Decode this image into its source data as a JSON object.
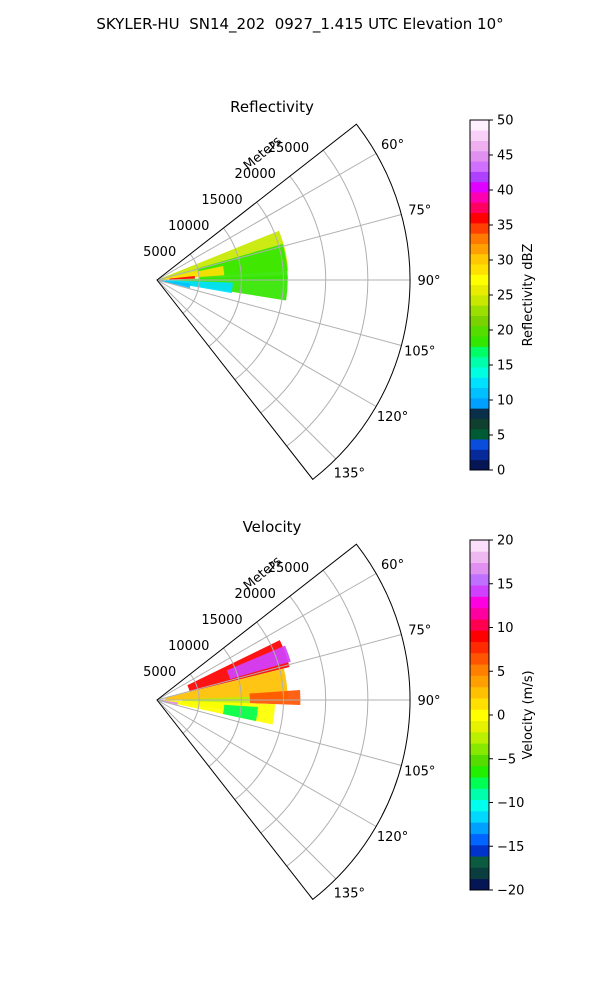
{
  "title": "SKYLER-HU  SN14_202  0927_1.415 UTC Elevation 10°",
  "chart_data": [
    {
      "type": "heatmap",
      "title": "Reflectivity",
      "range_label": "Meters",
      "range_ticks": [
        5000,
        10000,
        15000,
        20000,
        25000
      ],
      "range_max": 30000,
      "azimuth_ticks": [
        "60°",
        "75°",
        "90°",
        "105°",
        "120°",
        "135°"
      ],
      "azimuth_values": [
        60,
        75,
        90,
        105,
        120,
        135
      ],
      "azimuth_range": [
        52,
        142
      ],
      "grid": true,
      "colorbar": {
        "label": "Reflectivity dBZ",
        "range": [
          0,
          50
        ],
        "ticks": [
          "0",
          "5",
          "10",
          "15",
          "20",
          "25",
          "30",
          "35",
          "40",
          "45",
          "50"
        ],
        "colors": [
          "#061553",
          "#072a9b",
          "#0a4ddd",
          "#005a33",
          "#0f3f2e",
          "#0a2f4a",
          "#00a0ff",
          "#00c0ff",
          "#00e0ff",
          "#00ffe0",
          "#00ffaa",
          "#00ff66",
          "#33e600",
          "#55dd00",
          "#7ad300",
          "#9adf00",
          "#c8e800",
          "#e8ec00",
          "#ffff00",
          "#ffe000",
          "#ffc800",
          "#ffa000",
          "#ff7800",
          "#ff4000",
          "#ff0000",
          "#ff0060",
          "#ff00b0",
          "#e000ff",
          "#b040ff",
          "#d070ff",
          "#e090f0",
          "#f0b0f0",
          "#f8d0f8",
          "#fff0ff"
        ]
      },
      "echoes": [
        {
          "az": [
            68,
            86
          ],
          "r": [
            0,
            15600
          ],
          "value": 24
        },
        {
          "az": [
            74,
            90
          ],
          "r": [
            5000,
            15500
          ],
          "value": 18
        },
        {
          "az": [
            88,
            99
          ],
          "r": [
            2000,
            15500
          ],
          "value": 19
        },
        {
          "az": [
            92,
            100
          ],
          "r": [
            1000,
            9000
          ],
          "value": 13
        },
        {
          "az": [
            78,
            86
          ],
          "r": [
            1000,
            8000
          ],
          "value": 29
        },
        {
          "az": [
            84,
            88
          ],
          "r": [
            1500,
            4500
          ],
          "value": 36
        },
        {
          "az": [
            96,
            104
          ],
          "r": [
            200,
            4000
          ],
          "value": 11
        }
      ]
    },
    {
      "type": "heatmap",
      "title": "Velocity",
      "range_label": "Meters",
      "range_ticks": [
        5000,
        10000,
        15000,
        20000,
        25000
      ],
      "range_max": 30000,
      "azimuth_ticks": [
        "60°",
        "75°",
        "90°",
        "105°",
        "120°",
        "135°"
      ],
      "azimuth_values": [
        60,
        75,
        90,
        105,
        120,
        135
      ],
      "azimuth_range": [
        52,
        142
      ],
      "grid": true,
      "colorbar": {
        "label": "Velocity (m/s)",
        "range": [
          -20,
          20
        ],
        "ticks": [
          "−20",
          "−15",
          "−10",
          "−5",
          "0",
          "5",
          "10",
          "15",
          "20"
        ],
        "colors": [
          "#061553",
          "#0a3d3d",
          "#0c5a40",
          "#0033cc",
          "#0066ff",
          "#00a0ff",
          "#00d8ff",
          "#00ffee",
          "#00ffaa",
          "#00ff55",
          "#22ee00",
          "#55dd00",
          "#88e800",
          "#bbf000",
          "#e6f200",
          "#ffff00",
          "#ffe000",
          "#ffc000",
          "#ffa000",
          "#ff8000",
          "#ff5500",
          "#ff2a00",
          "#ff0000",
          "#ff0050",
          "#ff00a0",
          "#ff00e0",
          "#d040ff",
          "#c070ff",
          "#e090f0",
          "#f0b8f0",
          "#fae0fa"
        ]
      },
      "echoes": [
        {
          "az": [
            64,
            76
          ],
          "r": [
            4000,
            16200
          ],
          "value": 9
        },
        {
          "az": [
            67,
            74
          ],
          "r": [
            9000,
            16500
          ],
          "value": 14
        },
        {
          "az": [
            76,
            90
          ],
          "r": [
            1000,
            15500
          ],
          "value": 2
        },
        {
          "az": [
            86,
            92
          ],
          "r": [
            11000,
            17000
          ],
          "value": 6
        },
        {
          "az": [
            88,
            98
          ],
          "r": [
            3000,
            11000
          ],
          "value": -3
        },
        {
          "az": [
            92,
            102
          ],
          "r": [
            0,
            14000
          ],
          "value": 0
        },
        {
          "az": [
            94,
            102
          ],
          "r": [
            8000,
            12000
          ],
          "value": -8
        },
        {
          "az": [
            96,
            104
          ],
          "r": [
            200,
            2500
          ],
          "value": 17
        }
      ]
    }
  ]
}
